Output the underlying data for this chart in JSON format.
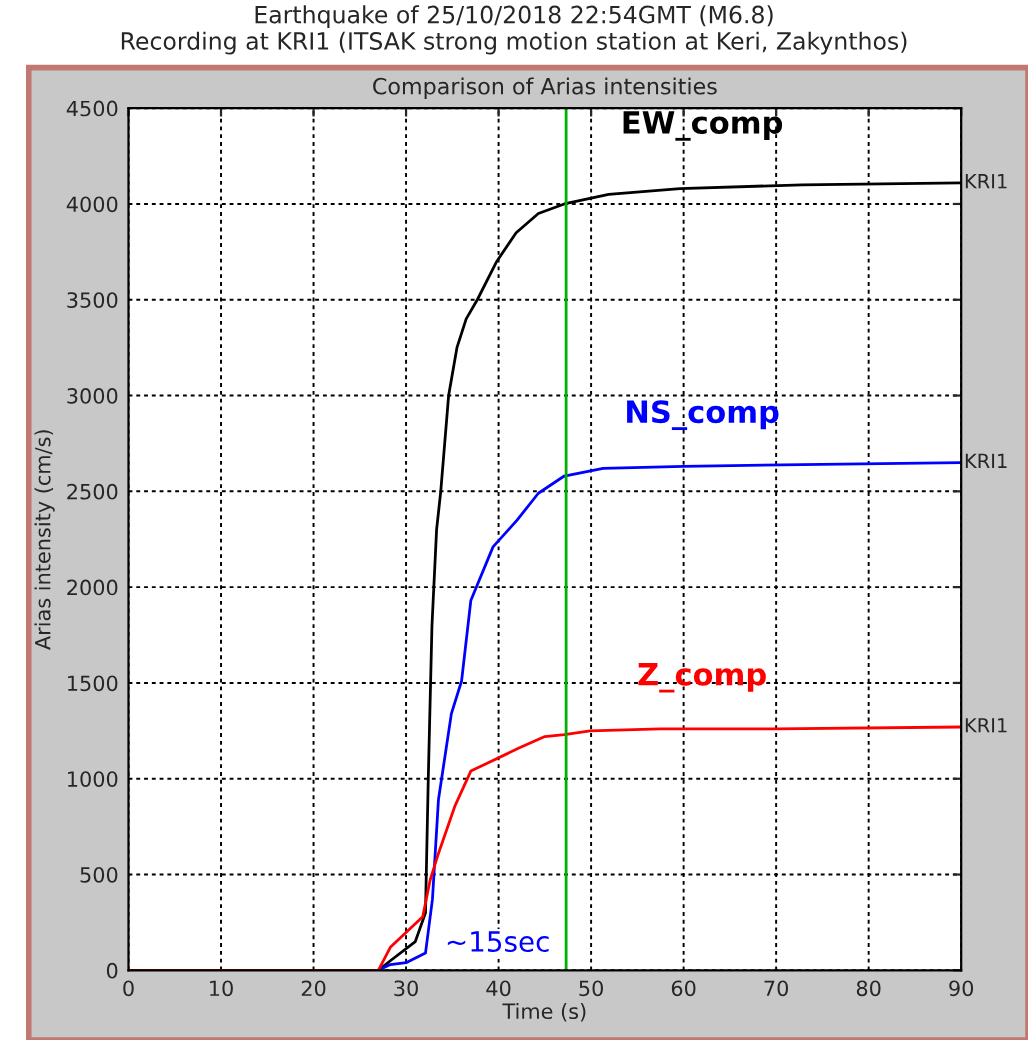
{
  "chart_data": {
    "type": "line",
    "title": "Earthquake of 25/10/2018 22:54GMT (M6.8)\nRecording at KRI1 (ITSAK strong motion station at Keri, Zakynthos)",
    "subtitle": "Comparison of Arias intensities",
    "xlabel": "Time (s)",
    "ylabel": "Arias intensity (cm/s)",
    "xlim": [
      0,
      90
    ],
    "ylim": [
      0,
      4500
    ],
    "xticks": [
      0,
      10,
      20,
      30,
      40,
      50,
      60,
      70,
      80,
      90
    ],
    "yticks": [
      0,
      500,
      1000,
      1500,
      2000,
      2500,
      3000,
      3500,
      4000,
      4500
    ],
    "grid": true,
    "marker": "none",
    "line_style": "solid",
    "series": [
      {
        "name": "EW_comp",
        "color": "#000000",
        "x": [
          0,
          27,
          28.3,
          31,
          32.1,
          32.4,
          32.8,
          33.3,
          33.75,
          34.6,
          35.5,
          36.5,
          37.7,
          39.8,
          41.9,
          44.3,
          47.1,
          51.9,
          59.6,
          72.8,
          90
        ],
        "values": [
          0,
          0,
          50,
          150,
          300,
          1000,
          1800,
          2300,
          2500,
          3000,
          3250,
          3400,
          3500,
          3700,
          3850,
          3950,
          4000,
          4050,
          4080,
          4100,
          4110
        ]
      },
      {
        "name": "NS_comp",
        "color": "#0000ff",
        "x": [
          0,
          27,
          28.3,
          30,
          32.1,
          32.85,
          33.5,
          34.9,
          36.0,
          37.0,
          39.4,
          42.0,
          44.3,
          47.1,
          51.3,
          60,
          72.8,
          90
        ],
        "values": [
          0,
          0,
          30,
          40,
          90,
          370,
          890,
          1340,
          1510,
          1930,
          2210,
          2350,
          2490,
          2580,
          2620,
          2630,
          2640,
          2650
        ]
      },
      {
        "name": "Z_comp",
        "color": "#ff0000",
        "x": [
          0,
          27,
          28.3,
          31.8,
          32.6,
          33.5,
          35.3,
          37.0,
          42.2,
          45.0,
          47.1,
          49.9,
          57.5,
          70,
          90
        ],
        "values": [
          0,
          0,
          120,
          280,
          470,
          610,
          860,
          1040,
          1160,
          1220,
          1230,
          1250,
          1260,
          1260,
          1270
        ]
      }
    ],
    "ref_lines": [
      {
        "axis": "x",
        "value": 47.3,
        "color": "#00b000"
      }
    ],
    "annotations": [
      "~15sec",
      "KRI1",
      "KRI1",
      "KRI1"
    ]
  }
}
